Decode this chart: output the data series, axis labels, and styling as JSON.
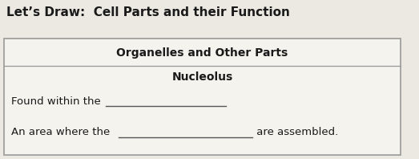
{
  "title": "Let’s Draw:  Cell Parts and their Function",
  "header1": "Organelles and Other Parts",
  "header2": "Nucleolus",
  "line1_pre": "Found within the ",
  "line2_pre": "An area where the ",
  "line2_post": " are assembled.",
  "bg_color": "#ece9e3",
  "box_color": "#f5f3ee",
  "border_color": "#999999",
  "title_fontsize": 11.0,
  "header_fontsize": 10.0,
  "body_fontsize": 9.5,
  "title_color": "#1a1a1a",
  "header_color": "#1a1a1a",
  "body_color": "#1a1a1a",
  "underline_color": "#555555",
  "fig_w": 5.23,
  "fig_h": 1.98,
  "dpi": 100
}
